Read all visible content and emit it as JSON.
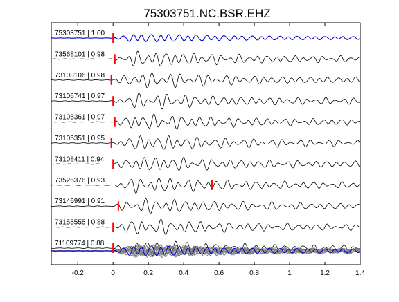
{
  "chart_data": {
    "type": "line",
    "title": "75303751.NC.BSR.EHZ",
    "xlabel": "",
    "ylabel": "",
    "xlim": [
      -0.35,
      1.4
    ],
    "xticks": [
      -0.2,
      0,
      0.2,
      0.4,
      0.6,
      0.8,
      1,
      1.2,
      1.4
    ],
    "xtick_labels": [
      "-0.2",
      "0",
      "0.2",
      "0.4",
      "0.6",
      "0.8",
      "1",
      "1.2",
      "1.4"
    ],
    "grid": false,
    "trace_color_master": "#0000cc",
    "trace_color_other": "#000000",
    "stack_color_other": "#7f7f7f",
    "pick_color": "#ff0000",
    "traces": [
      {
        "label": "75303751 | 1.00",
        "id": "75303751",
        "cc": 1.0,
        "pick_time": 0.0,
        "master": true
      },
      {
        "label": "73568101 | 0.98",
        "id": "73568101",
        "cc": 0.98,
        "pick_time": 0.01,
        "master": false
      },
      {
        "label": "73108106 | 0.98",
        "id": "73108106",
        "cc": 0.98,
        "pick_time": -0.01,
        "master": false
      },
      {
        "label": "73106741 | 0.97",
        "id": "73106741",
        "cc": 0.97,
        "pick_time": 0.0,
        "master": false
      },
      {
        "label": "73105361 | 0.97",
        "id": "73105361",
        "cc": 0.97,
        "pick_time": 0.01,
        "master": false
      },
      {
        "label": "73105351 | 0.95",
        "id": "73105351",
        "cc": 0.95,
        "pick_time": -0.01,
        "master": false
      },
      {
        "label": "73108411 | 0.94",
        "id": "73108411",
        "cc": 0.94,
        "pick_time": 0.0,
        "master": false
      },
      {
        "label": "73526376 | 0.93",
        "id": "73526376",
        "cc": 0.93,
        "pick_time": 0.56,
        "master": false
      },
      {
        "label": "73146991 | 0.91",
        "id": "73146991",
        "cc": 0.91,
        "pick_time": 0.03,
        "master": false
      },
      {
        "label": "73155555 | 0.88",
        "id": "73155555",
        "cc": 0.88,
        "pick_time": 0.0,
        "master": false
      },
      {
        "label": "71109774 | 0.88",
        "id": "71109774",
        "cc": 0.88,
        "pick_time": 0.0,
        "master": false
      }
    ],
    "stack": {
      "onset_time": 0.0,
      "includes_master": true
    }
  }
}
